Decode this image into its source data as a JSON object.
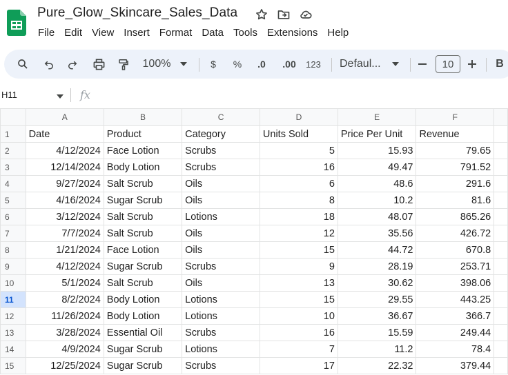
{
  "app": {
    "title": "Pure_Glow_Skincare_Sales_Data",
    "menus": [
      "File",
      "Edit",
      "View",
      "Insert",
      "Format",
      "Data",
      "Tools",
      "Extensions",
      "Help"
    ]
  },
  "toolbar": {
    "zoom": "100%",
    "currency": "$",
    "percent": "%",
    "dec_decrease": ".0",
    "dec_increase": ".00",
    "number_format": "123",
    "font": "Defaul...",
    "font_size": "10",
    "bold": "B"
  },
  "formula": {
    "cell_ref": "H11",
    "fx": "fx"
  },
  "sheet": {
    "column_letters": [
      "A",
      "B",
      "C",
      "D",
      "E",
      "F"
    ],
    "active_row": "11",
    "rows": [
      {
        "n": "1",
        "cells": [
          "Date",
          "Product",
          "Category",
          "Units Sold",
          "Price Per Unit",
          "Revenue"
        ]
      },
      {
        "n": "2",
        "cells": [
          "4/12/2024",
          "Face Lotion",
          "Scrubs",
          "5",
          "15.93",
          "79.65"
        ]
      },
      {
        "n": "3",
        "cells": [
          "12/14/2024",
          "Body Lotion",
          "Scrubs",
          "16",
          "49.47",
          "791.52"
        ]
      },
      {
        "n": "4",
        "cells": [
          "9/27/2024",
          "Salt Scrub",
          "Oils",
          "6",
          "48.6",
          "291.6"
        ]
      },
      {
        "n": "5",
        "cells": [
          "4/16/2024",
          "Sugar Scrub",
          "Oils",
          "8",
          "10.2",
          "81.6"
        ]
      },
      {
        "n": "6",
        "cells": [
          "3/12/2024",
          "Salt Scrub",
          "Lotions",
          "18",
          "48.07",
          "865.26"
        ]
      },
      {
        "n": "7",
        "cells": [
          "7/7/2024",
          "Salt Scrub",
          "Oils",
          "12",
          "35.56",
          "426.72"
        ]
      },
      {
        "n": "8",
        "cells": [
          "1/21/2024",
          "Face Lotion",
          "Oils",
          "15",
          "44.72",
          "670.8"
        ]
      },
      {
        "n": "9",
        "cells": [
          "4/12/2024",
          "Sugar Scrub",
          "Scrubs",
          "9",
          "28.19",
          "253.71"
        ]
      },
      {
        "n": "10",
        "cells": [
          "5/1/2024",
          "Salt Scrub",
          "Oils",
          "13",
          "30.62",
          "398.06"
        ]
      },
      {
        "n": "11",
        "cells": [
          "8/2/2024",
          "Body Lotion",
          "Lotions",
          "15",
          "29.55",
          "443.25"
        ]
      },
      {
        "n": "12",
        "cells": [
          "11/26/2024",
          "Body Lotion",
          "Lotions",
          "10",
          "36.67",
          "366.7"
        ]
      },
      {
        "n": "13",
        "cells": [
          "3/28/2024",
          "Essential Oil",
          "Scrubs",
          "16",
          "15.59",
          "249.44"
        ]
      },
      {
        "n": "14",
        "cells": [
          "4/9/2024",
          "Sugar Scrub",
          "Lotions",
          "7",
          "11.2",
          "78.4"
        ]
      },
      {
        "n": "15",
        "cells": [
          "12/25/2024",
          "Sugar Scrub",
          "Scrubs",
          "17",
          "22.32",
          "379.44"
        ]
      }
    ]
  },
  "colors": {
    "sheets_green": "#0f9d58",
    "toolbar_bg": "#edf2fa",
    "active_row": "#d3e3fd"
  }
}
